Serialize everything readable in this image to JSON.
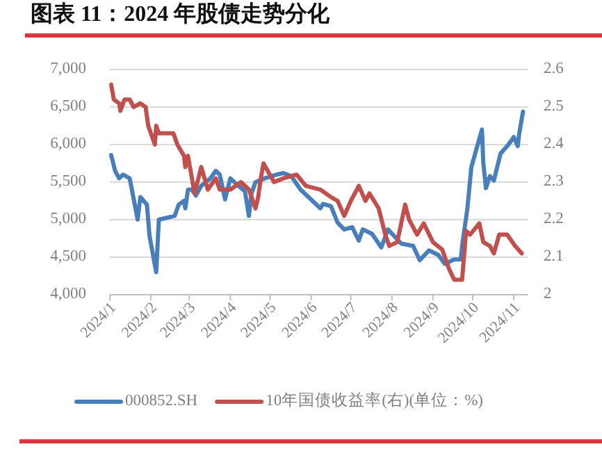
{
  "chart_data": {
    "type": "line",
    "title": "图表 11：2024 年股债走势分化",
    "legend": "bottom",
    "grid": "y",
    "line_style": "solid",
    "marker": "none",
    "xlim": [
      "2024-01-01",
      "2024-11-12"
    ],
    "xticks": [
      {
        "value": "2024-01",
        "label": "2024/1"
      },
      {
        "value": "2024-02",
        "label": "2024/2"
      },
      {
        "value": "2024-03",
        "label": "2024/3"
      },
      {
        "value": "2024-04",
        "label": "2024/4"
      },
      {
        "value": "2024-05",
        "label": "2024/5"
      },
      {
        "value": "2024-06",
        "label": "2024/6"
      },
      {
        "value": "2024-07",
        "label": "2024/7"
      },
      {
        "value": "2024-08",
        "label": "2024/8"
      },
      {
        "value": "2024-09",
        "label": "2024/9"
      },
      {
        "value": "2024-10",
        "label": "2024/10"
      },
      {
        "value": "2024-11",
        "label": "2024/11"
      }
    ],
    "ylim": [
      4000,
      7000
    ],
    "yticks": [
      {
        "value": 4000,
        "label": "4,000"
      },
      {
        "value": 4500,
        "label": "4,500"
      },
      {
        "value": 5000,
        "label": "5,000"
      },
      {
        "value": 5500,
        "label": "5,500"
      },
      {
        "value": 6000,
        "label": "6,000"
      },
      {
        "value": 6500,
        "label": "6,500"
      },
      {
        "value": 7000,
        "label": "7,000"
      }
    ],
    "y2lim": [
      2,
      2.6
    ],
    "y2ticks": [
      2,
      2.1,
      2.2,
      2.3,
      2.4,
      2.5,
      2.6
    ],
    "series": [
      {
        "name": "000852.SH",
        "color": "#4a7ebb",
        "x": [
          "2024-01-02",
          "2024-01-05",
          "2024-01-08",
          "2024-01-11",
          "2024-01-16",
          "2024-01-22",
          "2024-01-24",
          "2024-01-29",
          "2024-01-31",
          "2024-02-05",
          "2024-02-07",
          "2024-02-19",
          "2024-02-22",
          "2024-02-26",
          "2024-02-27",
          "2024-02-29",
          "2024-03-03",
          "2024-03-06",
          "2024-03-10",
          "2024-03-17",
          "2024-03-21",
          "2024-03-24",
          "2024-03-28",
          "2024-04-01",
          "2024-04-07",
          "2024-04-12",
          "2024-04-15",
          "2024-04-17",
          "2024-04-20",
          "2024-04-27",
          "2024-05-06",
          "2024-05-11",
          "2024-05-17",
          "2024-05-24",
          "2024-06-08",
          "2024-06-10",
          "2024-06-16",
          "2024-06-21",
          "2024-06-26",
          "2024-07-02",
          "2024-07-07",
          "2024-07-10",
          "2024-07-17",
          "2024-07-24",
          "2024-07-29",
          "2024-08-08",
          "2024-08-17",
          "2024-08-22",
          "2024-08-29",
          "2024-09-05",
          "2024-09-10",
          "2024-09-17",
          "2024-09-22",
          "2024-09-23",
          "2024-09-27",
          "2024-09-30",
          "2024-10-08",
          "2024-10-09",
          "2024-10-11",
          "2024-10-14",
          "2024-10-17",
          "2024-10-22",
          "2024-10-28",
          "2024-11-01",
          "2024-11-04",
          "2024-11-05",
          "2024-11-08"
        ],
        "values": [
          5860,
          5650,
          5550,
          5600,
          5550,
          5000,
          5300,
          5200,
          4780,
          4300,
          5000,
          5050,
          5200,
          5250,
          5150,
          5400,
          5400,
          5320,
          5450,
          5550,
          5650,
          5600,
          5270,
          5550,
          5450,
          5380,
          5050,
          5350,
          5500,
          5550,
          5600,
          5620,
          5580,
          5400,
          5150,
          5210,
          5180,
          4960,
          4870,
          4900,
          4720,
          4870,
          4810,
          4630,
          4870,
          4680,
          4650,
          4460,
          4590,
          4530,
          4410,
          4470,
          4470,
          4650,
          5150,
          5700,
          6200,
          5760,
          5420,
          5580,
          5520,
          5880,
          6000,
          6100,
          5980,
          6130,
          6440
        ]
      },
      {
        "name": "10年国债收益率(右)(单位：%)",
        "color": "#c0504d",
        "axis": "y2",
        "x": [
          "2024-01-02",
          "2024-01-04",
          "2024-01-08",
          "2024-01-09",
          "2024-01-12",
          "2024-01-16",
          "2024-01-19",
          "2024-01-24",
          "2024-01-28",
          "2024-01-30",
          "2024-02-04",
          "2024-02-05",
          "2024-02-07",
          "2024-02-18",
          "2024-02-21",
          "2024-02-26",
          "2024-02-27",
          "2024-02-29",
          "2024-03-05",
          "2024-03-10",
          "2024-03-15",
          "2024-03-21",
          "2024-03-24",
          "2024-04-01",
          "2024-04-09",
          "2024-04-15",
          "2024-04-20",
          "2024-04-22",
          "2024-04-24",
          "2024-04-26",
          "2024-05-04",
          "2024-05-11",
          "2024-05-21",
          "2024-05-28",
          "2024-06-08",
          "2024-06-16",
          "2024-06-21",
          "2024-06-26",
          "2024-07-01",
          "2024-07-07",
          "2024-07-12",
          "2024-07-15",
          "2024-07-22",
          "2024-07-27",
          "2024-07-30",
          "2024-08-05",
          "2024-08-11",
          "2024-08-14",
          "2024-08-20",
          "2024-08-25",
          "2024-09-01",
          "2024-09-08",
          "2024-09-13",
          "2024-09-17",
          "2024-09-23",
          "2024-09-26",
          "2024-09-29",
          "2024-10-06",
          "2024-10-09",
          "2024-10-14",
          "2024-10-17",
          "2024-10-21",
          "2024-10-27",
          "2024-11-02",
          "2024-11-07"
        ],
        "values": [
          2.56,
          2.52,
          2.51,
          2.49,
          2.52,
          2.52,
          2.5,
          2.51,
          2.5,
          2.45,
          2.4,
          2.45,
          2.43,
          2.43,
          2.4,
          2.37,
          2.34,
          2.37,
          2.27,
          2.34,
          2.28,
          2.31,
          2.28,
          2.28,
          2.3,
          2.28,
          2.23,
          2.26,
          2.31,
          2.35,
          2.3,
          2.31,
          2.32,
          2.29,
          2.28,
          2.26,
          2.25,
          2.21,
          2.25,
          2.29,
          2.25,
          2.27,
          2.23,
          2.16,
          2.13,
          2.14,
          2.24,
          2.2,
          2.16,
          2.19,
          2.14,
          2.12,
          2.07,
          2.04,
          2.04,
          2.17,
          2.16,
          2.19,
          2.14,
          2.13,
          2.11,
          2.16,
          2.16,
          2.13,
          2.11
        ]
      }
    ]
  }
}
